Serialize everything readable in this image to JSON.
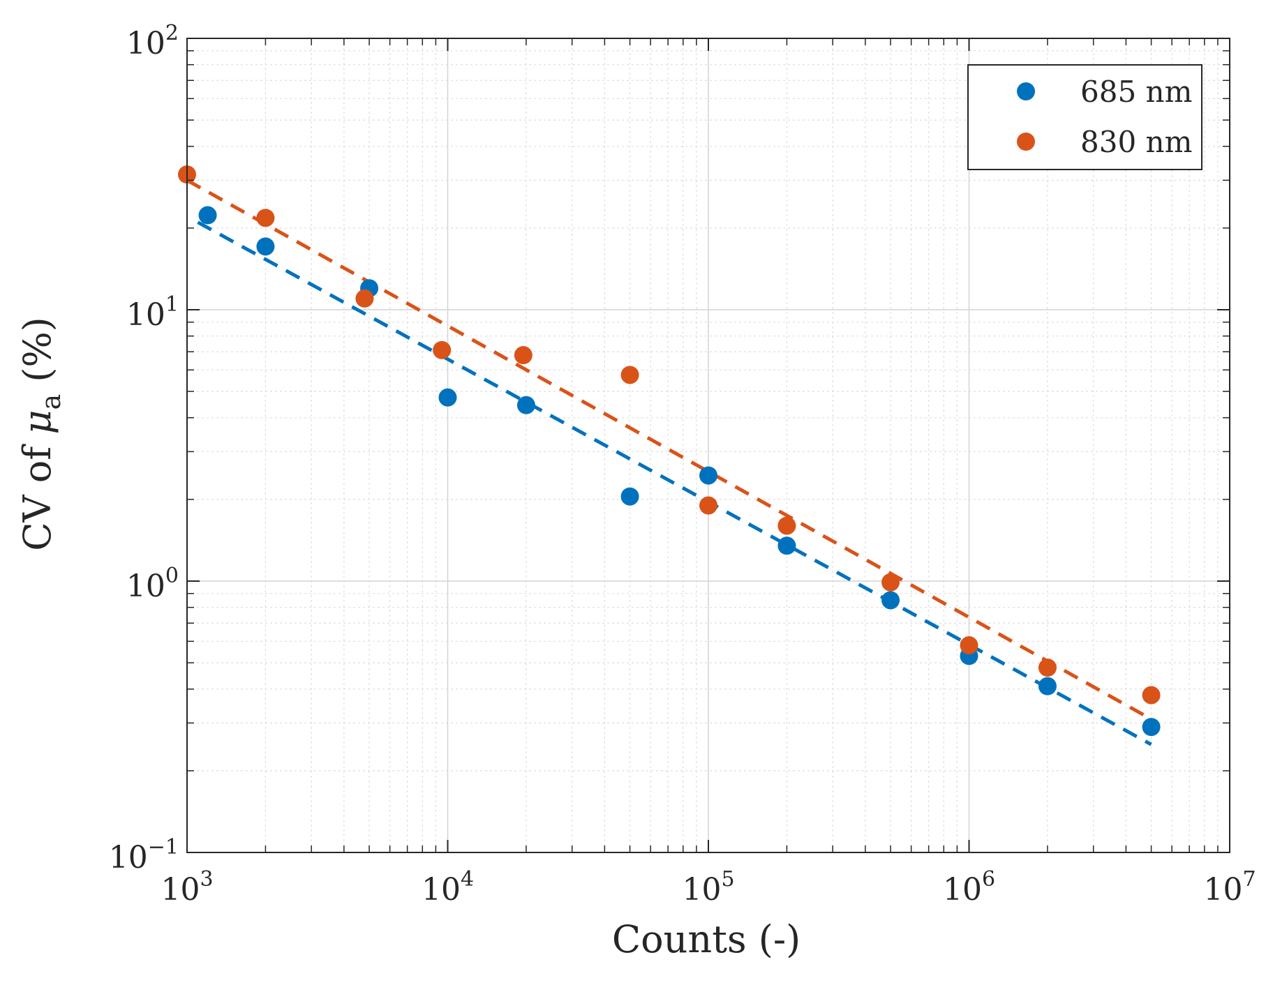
{
  "chart_data": {
    "type": "scatter",
    "x_scale": "log",
    "y_scale": "log",
    "xlim": [
      1000,
      10000000
    ],
    "ylim": [
      0.1,
      100
    ],
    "grid": true,
    "minor_grid": true,
    "xlabel": "Counts (-)",
    "ylabel": {
      "prefix": "CV of ",
      "symbol": "μ",
      "subscript": "a",
      "suffix": " (%)"
    },
    "x_ticks": [
      {
        "value": 1000,
        "base": "10",
        "exp": "3"
      },
      {
        "value": 10000,
        "base": "10",
        "exp": "4"
      },
      {
        "value": 100000,
        "base": "10",
        "exp": "5"
      },
      {
        "value": 1000000,
        "base": "10",
        "exp": "6"
      },
      {
        "value": 10000000,
        "base": "10",
        "exp": "7"
      }
    ],
    "y_ticks": [
      {
        "value": 0.1,
        "base": "10",
        "exp": "−1"
      },
      {
        "value": 1,
        "base": "10",
        "exp": "0"
      },
      {
        "value": 10,
        "base": "10",
        "exp": "1"
      },
      {
        "value": 100,
        "base": "10",
        "exp": "2"
      }
    ],
    "legend_position": "top-right",
    "series": [
      {
        "name": "685 nm",
        "color": "#0072BD",
        "x": [
          1200,
          2000,
          5000,
          10000,
          20000,
          50000,
          100000,
          200000,
          500000,
          1000000,
          2000000,
          5000000
        ],
        "y": [
          22.3,
          17.1,
          12.0,
          4.75,
          4.45,
          2.05,
          2.45,
          1.35,
          0.85,
          0.53,
          0.41,
          0.29
        ],
        "fit": {
          "x": [
            1100,
            5000000
          ],
          "y": [
            21.0,
            0.25
          ]
        }
      },
      {
        "name": "830 nm",
        "color": "#D95319",
        "x": [
          1000,
          2000,
          4800,
          9500,
          19500,
          50000,
          100000,
          200000,
          500000,
          1000000,
          2000000,
          5000000
        ],
        "y": [
          31.5,
          21.8,
          11.0,
          7.1,
          6.8,
          5.75,
          1.9,
          1.6,
          0.99,
          0.58,
          0.48,
          0.38
        ],
        "fit": {
          "x": [
            1000,
            5000000
          ],
          "y": [
            30.0,
            0.31
          ]
        }
      }
    ]
  }
}
